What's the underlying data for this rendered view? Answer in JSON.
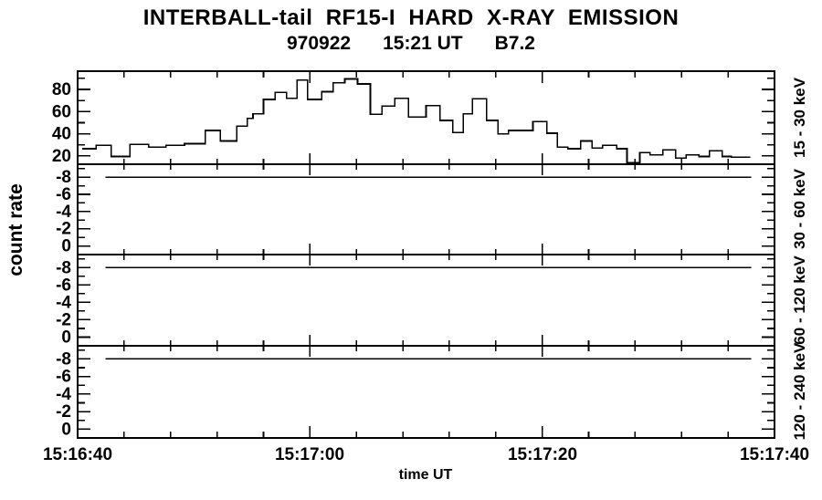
{
  "page": {
    "background": "#ffffff",
    "ink": "#000000"
  },
  "chart_data": {
    "type": "line",
    "subtype": "multi-panel step histogram, time series",
    "title": "INTERBALL-tail  RF15-I  HARD  X-RAY  EMISSION",
    "subtitle": "970922      15:21 UT      B7.2",
    "xlabel": "time UT",
    "ylabel": "count rate",
    "grid": "off",
    "x_axis": {
      "tick_labels": [
        "15:16:40",
        "15:17:00",
        "15:17:20",
        "15:17:40"
      ],
      "tick_seconds": [
        0,
        20,
        40,
        60
      ],
      "minor_step_s": 4,
      "range_s": [
        0,
        60
      ]
    },
    "panels": [
      {
        "label": "15 - 30 keV",
        "y_top": 96.5,
        "y_bottom": 12.5,
        "yticks": [
          20,
          40,
          60,
          80
        ],
        "ytick_labels": [
          "20",
          "40",
          "60",
          "80"
        ],
        "yminor": [
          30,
          50,
          70,
          90
        ],
        "series": {
          "type": "step",
          "t": [
            0.4,
            1.6,
            2.9,
            4.5,
            6.1,
            7.6,
            9.2,
            11.0,
            12.3,
            13.7,
            14.6,
            15.1,
            16.0,
            17.0,
            18.0,
            18.9,
            19.8,
            21.0,
            22.0,
            23.0,
            24.1,
            25.2,
            26.2,
            27.3,
            28.5,
            30.0,
            31.2,
            32.3,
            33.2,
            34.0,
            35.2,
            36.2,
            37.1,
            39.2,
            40.4,
            41.3,
            42.2,
            43.3,
            44.3,
            45.2,
            46.4,
            47.3,
            48.4,
            49.3,
            50.4,
            51.5,
            52.4,
            53.5,
            54.4,
            55.5,
            56.3,
            57.9
          ],
          "v": [
            26.5,
            29.5,
            19.5,
            30.5,
            28,
            29.5,
            31,
            43,
            33.5,
            47,
            54,
            58,
            71,
            77.5,
            72,
            88.5,
            71,
            78,
            86,
            89.5,
            85,
            57.5,
            65,
            72,
            55,
            65.5,
            52,
            41,
            58,
            71.5,
            52,
            40,
            43,
            51,
            40.5,
            28,
            26.5,
            33.5,
            27,
            29.5,
            26.5,
            14,
            23,
            21,
            25.5,
            18,
            21,
            19.5,
            24.5,
            19.5,
            19
          ]
        }
      },
      {
        "label": "30 - 60 keV",
        "y_top": -9.5,
        "y_bottom": 1.0,
        "yticks": [
          -8,
          -6,
          -4,
          -2,
          0
        ],
        "ytick_labels": [
          "-8",
          "-6",
          "-4",
          "-2",
          "0"
        ],
        "yminor": [
          -9,
          -7,
          -5,
          -3,
          -1
        ],
        "flat_line": {
          "value": -8,
          "t_start": 2.4,
          "t_end": 58.0
        }
      },
      {
        "label": "60 - 120 keV",
        "y_top": -9.5,
        "y_bottom": 1.0,
        "yticks": [
          -8,
          -6,
          -4,
          -2,
          0
        ],
        "ytick_labels": [
          "-8",
          "-6",
          "-4",
          "-2",
          "0"
        ],
        "yminor": [
          -9,
          -7,
          -5,
          -3,
          -1
        ],
        "flat_line": {
          "value": -8,
          "t_start": 2.4,
          "t_end": 58.0
        }
      },
      {
        "label": "120 - 240 keV",
        "y_top": -9.5,
        "y_bottom": 1.0,
        "yticks": [
          -8,
          -6,
          -4,
          -2,
          0
        ],
        "ytick_labels": [
          "-8",
          "-6",
          "-4",
          "-2",
          "0"
        ],
        "yminor": [
          -9,
          -7,
          -5,
          -3,
          -1
        ],
        "flat_line": {
          "value": -8,
          "t_start": 2.4,
          "t_end": 58.0
        }
      }
    ]
  }
}
